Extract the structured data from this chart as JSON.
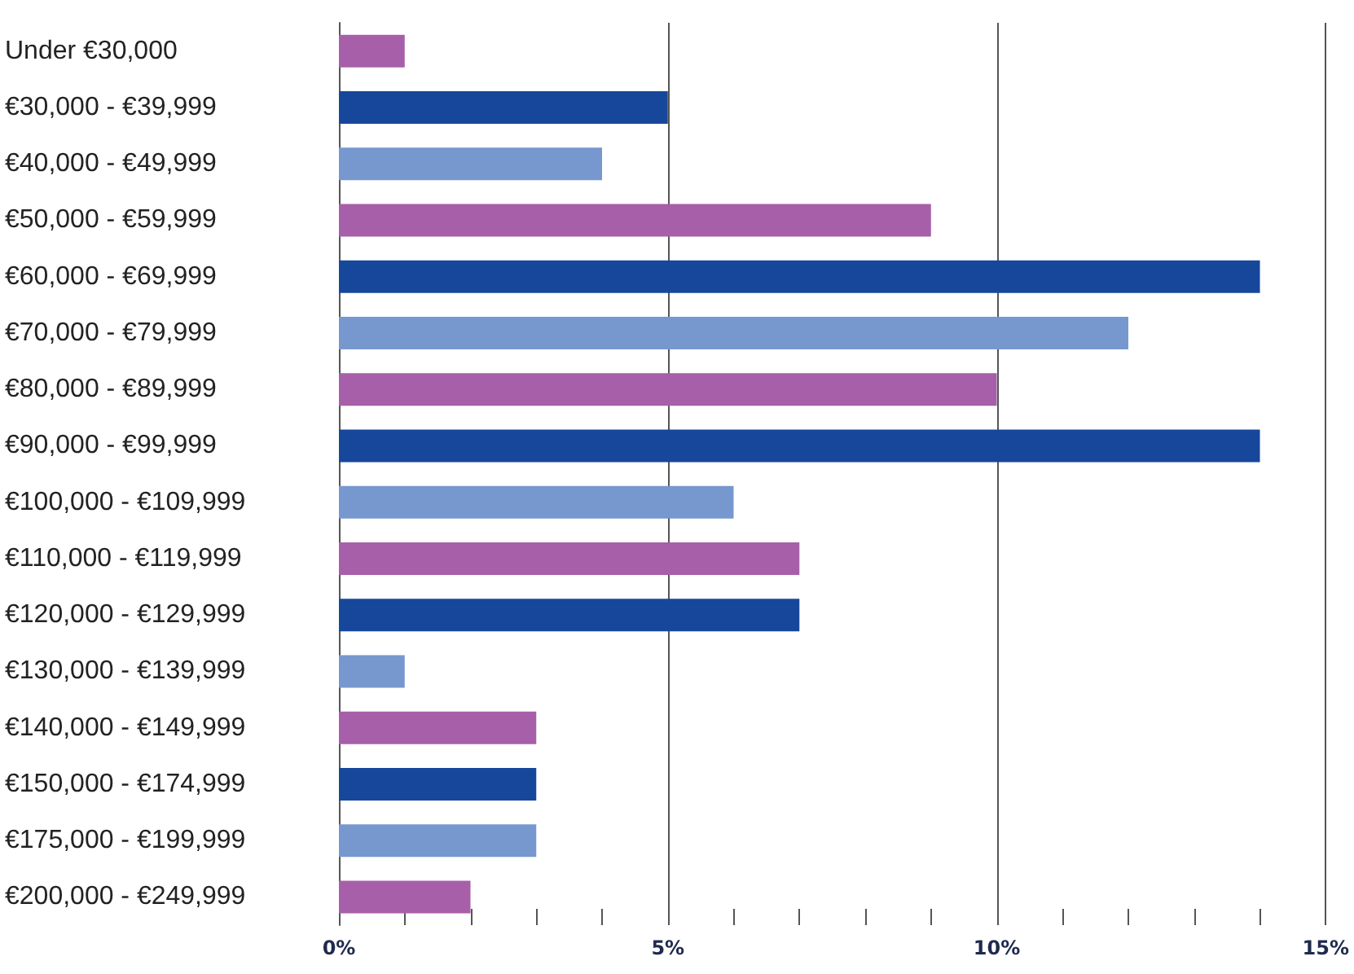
{
  "chart_data": {
    "type": "bar",
    "orientation": "horizontal",
    "categories": [
      "Under €30,000",
      "€30,000 - €39,999",
      "€40,000 - €49,999",
      "€50,000 - €59,999",
      "€60,000 - €69,999",
      "€70,000 - €79,999",
      "€80,000 - €89,999",
      "€90,000 - €99,999",
      "€100,000 - €109,999",
      "€110,000 - €119,999",
      "€120,000 - €129,999",
      "€130,000 - €139,999",
      "€140,000 - €149,999",
      "€150,000 - €174,999",
      "€175,000 - €199,999",
      "€200,000 - €249,999"
    ],
    "values": [
      1,
      5,
      4,
      9,
      14,
      12,
      10,
      14,
      6,
      7,
      7,
      1,
      3,
      3,
      3,
      2
    ],
    "colors": [
      "#a65fa8",
      "#17479a",
      "#7698cf",
      "#a65fa8",
      "#17479a",
      "#7698cf",
      "#a65fa8",
      "#17479a",
      "#7698cf",
      "#a65fa8",
      "#17479a",
      "#7698cf",
      "#a65fa8",
      "#17479a",
      "#7698cf",
      "#a65fa8"
    ],
    "xlim": [
      0,
      15
    ],
    "xticks": [
      {
        "value": 0,
        "label": "0%"
      },
      {
        "value": 1,
        "label": null
      },
      {
        "value": 2,
        "label": null
      },
      {
        "value": 3,
        "label": null
      },
      {
        "value": 4,
        "label": null
      },
      {
        "value": 5,
        "label": "5%"
      },
      {
        "value": 6,
        "label": null
      },
      {
        "value": 7,
        "label": null
      },
      {
        "value": 8,
        "label": null
      },
      {
        "value": 9,
        "label": null
      },
      {
        "value": 10,
        "label": "10%"
      },
      {
        "value": 11,
        "label": null
      },
      {
        "value": 12,
        "label": null
      },
      {
        "value": 13,
        "label": null
      },
      {
        "value": 14,
        "label": null
      },
      {
        "value": 15,
        "label": "15%"
      }
    ],
    "grid": "x"
  }
}
